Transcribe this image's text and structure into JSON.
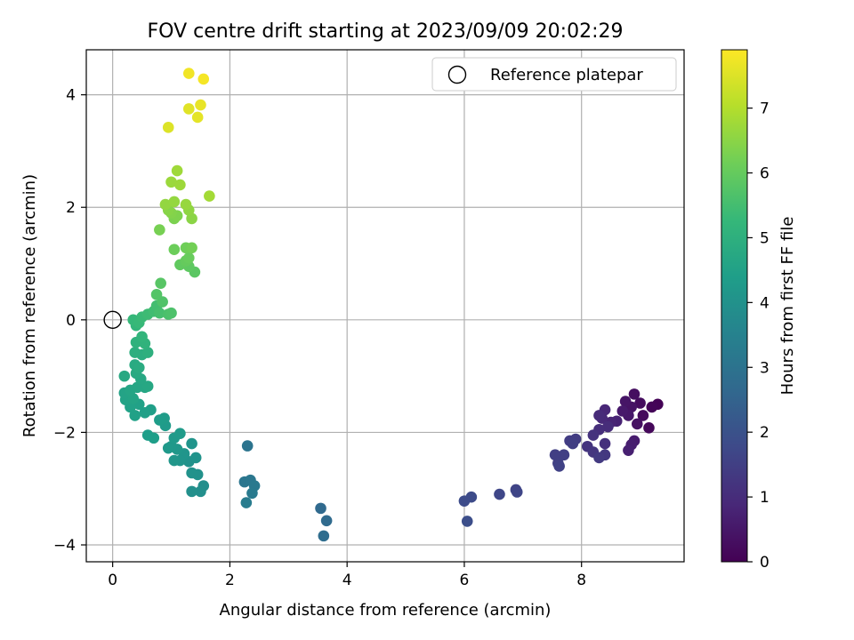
{
  "chart_data": {
    "type": "scatter",
    "title": "FOV centre drift starting at 2023/09/09 20:02:29",
    "xlabel": "Angular distance from reference (arcmin)",
    "ylabel": "Rotation from reference (arcmin)",
    "xlim": [
      -0.45,
      9.75
    ],
    "ylim": [
      -4.3,
      4.8
    ],
    "xticks": [
      0,
      2,
      4,
      6,
      8
    ],
    "yticks": [
      -4,
      -2,
      0,
      2,
      4
    ],
    "grid": true,
    "legend": {
      "position": "top-right",
      "entries": [
        "Reference platepar"
      ]
    },
    "reference_point": {
      "x": 0,
      "y": 0
    },
    "colorbar": {
      "label": "Hours from first FF file",
      "range": [
        0,
        7.9
      ],
      "ticks": [
        0,
        1,
        2,
        3,
        4,
        5,
        6,
        7
      ],
      "colormap": "viridis",
      "stops": [
        "#440154",
        "#482878",
        "#3e4989",
        "#31688e",
        "#26828e",
        "#1f9e89",
        "#35b779",
        "#6ece58",
        "#b5de2b",
        "#fde725"
      ]
    },
    "points": [
      {
        "x": 9.3,
        "y": -1.5,
        "h": 0.05
      },
      {
        "x": 9.2,
        "y": -1.55,
        "h": 0.1
      },
      {
        "x": 9.15,
        "y": -1.92,
        "h": 0.15
      },
      {
        "x": 9.05,
        "y": -1.7,
        "h": 0.2
      },
      {
        "x": 9.0,
        "y": -1.48,
        "h": 0.25
      },
      {
        "x": 8.9,
        "y": -1.32,
        "h": 0.3
      },
      {
        "x": 8.95,
        "y": -1.85,
        "h": 0.35
      },
      {
        "x": 8.85,
        "y": -1.55,
        "h": 0.4
      },
      {
        "x": 8.75,
        "y": -1.45,
        "h": 0.45
      },
      {
        "x": 8.8,
        "y": -1.7,
        "h": 0.5
      },
      {
        "x": 8.7,
        "y": -1.62,
        "h": 0.55
      },
      {
        "x": 8.9,
        "y": -2.15,
        "h": 0.6
      },
      {
        "x": 8.85,
        "y": -2.22,
        "h": 0.65
      },
      {
        "x": 8.8,
        "y": -2.32,
        "h": 0.7
      },
      {
        "x": 8.6,
        "y": -1.8,
        "h": 0.75
      },
      {
        "x": 8.5,
        "y": -1.82,
        "h": 0.8
      },
      {
        "x": 8.4,
        "y": -1.6,
        "h": 0.85
      },
      {
        "x": 8.35,
        "y": -1.75,
        "h": 0.9
      },
      {
        "x": 8.3,
        "y": -1.7,
        "h": 0.95
      },
      {
        "x": 8.45,
        "y": -1.9,
        "h": 1.0
      },
      {
        "x": 8.3,
        "y": -1.95,
        "h": 1.05
      },
      {
        "x": 8.4,
        "y": -2.2,
        "h": 1.1
      },
      {
        "x": 8.2,
        "y": -2.05,
        "h": 1.15
      },
      {
        "x": 8.1,
        "y": -2.25,
        "h": 1.2
      },
      {
        "x": 8.2,
        "y": -2.35,
        "h": 1.25
      },
      {
        "x": 8.4,
        "y": -2.4,
        "h": 1.3
      },
      {
        "x": 8.3,
        "y": -2.45,
        "h": 1.35
      },
      {
        "x": 7.9,
        "y": -2.12,
        "h": 1.4
      },
      {
        "x": 7.8,
        "y": -2.15,
        "h": 1.42
      },
      {
        "x": 7.85,
        "y": -2.2,
        "h": 1.45
      },
      {
        "x": 7.7,
        "y": -2.4,
        "h": 1.48
      },
      {
        "x": 7.55,
        "y": -2.4,
        "h": 1.5
      },
      {
        "x": 7.6,
        "y": -2.55,
        "h": 1.52
      },
      {
        "x": 7.62,
        "y": -2.6,
        "h": 1.55
      },
      {
        "x": 6.88,
        "y": -3.02,
        "h": 1.62
      },
      {
        "x": 6.9,
        "y": -3.06,
        "h": 1.65
      },
      {
        "x": 6.6,
        "y": -3.1,
        "h": 1.7
      },
      {
        "x": 6.12,
        "y": -3.15,
        "h": 1.8
      },
      {
        "x": 6.0,
        "y": -3.22,
        "h": 1.85
      },
      {
        "x": 6.05,
        "y": -3.58,
        "h": 1.9
      },
      {
        "x": 3.55,
        "y": -3.35,
        "h": 2.7
      },
      {
        "x": 3.65,
        "y": -3.57,
        "h": 2.75
      },
      {
        "x": 3.6,
        "y": -3.84,
        "h": 2.8
      },
      {
        "x": 2.3,
        "y": -2.24,
        "h": 3.05
      },
      {
        "x": 2.25,
        "y": -2.88,
        "h": 3.1
      },
      {
        "x": 2.35,
        "y": -2.85,
        "h": 3.15
      },
      {
        "x": 2.42,
        "y": -2.95,
        "h": 3.2
      },
      {
        "x": 2.38,
        "y": -3.08,
        "h": 3.25
      },
      {
        "x": 2.28,
        "y": -3.25,
        "h": 3.3
      },
      {
        "x": 1.55,
        "y": -2.95,
        "h": 3.9
      },
      {
        "x": 1.5,
        "y": -3.05,
        "h": 3.92
      },
      {
        "x": 1.35,
        "y": -3.05,
        "h": 3.95
      },
      {
        "x": 1.45,
        "y": -2.75,
        "h": 3.98
      },
      {
        "x": 1.35,
        "y": -2.72,
        "h": 4.0
      },
      {
        "x": 1.3,
        "y": -2.52,
        "h": 4.02
      },
      {
        "x": 1.42,
        "y": -2.45,
        "h": 4.05
      },
      {
        "x": 1.35,
        "y": -2.2,
        "h": 4.08
      },
      {
        "x": 1.22,
        "y": -2.38,
        "h": 4.1
      },
      {
        "x": 1.15,
        "y": -2.5,
        "h": 4.12
      },
      {
        "x": 1.05,
        "y": -2.5,
        "h": 4.15
      },
      {
        "x": 1.1,
        "y": -2.3,
        "h": 4.18
      },
      {
        "x": 1.0,
        "y": -2.25,
        "h": 4.2
      },
      {
        "x": 0.95,
        "y": -2.28,
        "h": 4.22
      },
      {
        "x": 1.05,
        "y": -2.1,
        "h": 4.25
      },
      {
        "x": 1.15,
        "y": -2.02,
        "h": 4.28
      },
      {
        "x": 0.9,
        "y": -1.88,
        "h": 4.3
      },
      {
        "x": 0.88,
        "y": -1.75,
        "h": 4.32
      },
      {
        "x": 0.8,
        "y": -1.78,
        "h": 4.35
      },
      {
        "x": 0.7,
        "y": -2.1,
        "h": 4.38
      },
      {
        "x": 0.6,
        "y": -2.05,
        "h": 4.4
      },
      {
        "x": 0.65,
        "y": -1.6,
        "h": 4.42
      },
      {
        "x": 0.55,
        "y": -1.65,
        "h": 4.45
      },
      {
        "x": 0.38,
        "y": -1.7,
        "h": 4.48
      },
      {
        "x": 0.45,
        "y": -1.5,
        "h": 4.5
      },
      {
        "x": 0.3,
        "y": -1.55,
        "h": 4.52
      },
      {
        "x": 0.22,
        "y": -1.42,
        "h": 4.55
      },
      {
        "x": 0.2,
        "y": -1.3,
        "h": 4.58
      },
      {
        "x": 0.35,
        "y": -1.4,
        "h": 4.6
      },
      {
        "x": 0.3,
        "y": -1.25,
        "h": 4.62
      },
      {
        "x": 0.42,
        "y": -1.2,
        "h": 4.65
      },
      {
        "x": 0.55,
        "y": -1.2,
        "h": 4.68
      },
      {
        "x": 0.6,
        "y": -1.18,
        "h": 4.7
      },
      {
        "x": 0.48,
        "y": -1.05,
        "h": 4.72
      },
      {
        "x": 0.2,
        "y": -1.0,
        "h": 4.75
      },
      {
        "x": 0.4,
        "y": -0.95,
        "h": 4.78
      },
      {
        "x": 0.38,
        "y": -0.8,
        "h": 4.8
      },
      {
        "x": 0.45,
        "y": -0.85,
        "h": 4.85
      },
      {
        "x": 0.5,
        "y": -0.62,
        "h": 4.9
      },
      {
        "x": 0.38,
        "y": -0.58,
        "h": 4.95
      },
      {
        "x": 0.6,
        "y": -0.58,
        "h": 5.0
      },
      {
        "x": 0.4,
        "y": -0.4,
        "h": 5.05
      },
      {
        "x": 0.55,
        "y": -0.42,
        "h": 5.1
      },
      {
        "x": 0.5,
        "y": -0.3,
        "h": 5.15
      },
      {
        "x": 0.4,
        "y": -0.1,
        "h": 5.2
      },
      {
        "x": 0.35,
        "y": 0.0,
        "h": 5.25
      },
      {
        "x": 0.45,
        "y": -0.05,
        "h": 5.3
      },
      {
        "x": 0.5,
        "y": 0.05,
        "h": 5.35
      },
      {
        "x": 0.6,
        "y": 0.1,
        "h": 5.4
      },
      {
        "x": 0.7,
        "y": 0.15,
        "h": 5.45
      },
      {
        "x": 0.75,
        "y": 0.25,
        "h": 5.5
      },
      {
        "x": 0.8,
        "y": 0.12,
        "h": 5.55
      },
      {
        "x": 0.95,
        "y": 0.1,
        "h": 5.6
      },
      {
        "x": 1.0,
        "y": 0.12,
        "h": 5.65
      },
      {
        "x": 0.85,
        "y": 0.32,
        "h": 5.7
      },
      {
        "x": 0.75,
        "y": 0.45,
        "h": 5.75
      },
      {
        "x": 0.82,
        "y": 0.65,
        "h": 5.8
      },
      {
        "x": 1.4,
        "y": 0.85,
        "h": 5.85
      },
      {
        "x": 1.3,
        "y": 0.95,
        "h": 5.9
      },
      {
        "x": 1.15,
        "y": 0.98,
        "h": 5.95
      },
      {
        "x": 1.25,
        "y": 1.05,
        "h": 6.0
      },
      {
        "x": 1.3,
        "y": 1.1,
        "h": 6.05
      },
      {
        "x": 1.05,
        "y": 1.25,
        "h": 6.1
      },
      {
        "x": 1.25,
        "y": 1.28,
        "h": 6.15
      },
      {
        "x": 1.35,
        "y": 1.28,
        "h": 6.2
      },
      {
        "x": 0.8,
        "y": 1.6,
        "h": 6.25
      },
      {
        "x": 1.05,
        "y": 1.8,
        "h": 6.3
      },
      {
        "x": 1.1,
        "y": 1.85,
        "h": 6.35
      },
      {
        "x": 1.0,
        "y": 1.9,
        "h": 6.4
      },
      {
        "x": 0.95,
        "y": 1.95,
        "h": 6.45
      },
      {
        "x": 1.35,
        "y": 1.8,
        "h": 6.5
      },
      {
        "x": 1.3,
        "y": 1.95,
        "h": 6.55
      },
      {
        "x": 0.9,
        "y": 2.05,
        "h": 6.6
      },
      {
        "x": 1.05,
        "y": 2.1,
        "h": 6.62
      },
      {
        "x": 1.25,
        "y": 2.05,
        "h": 6.65
      },
      {
        "x": 1.0,
        "y": 2.45,
        "h": 6.7
      },
      {
        "x": 1.15,
        "y": 2.4,
        "h": 6.72
      },
      {
        "x": 1.1,
        "y": 2.65,
        "h": 6.75
      },
      {
        "x": 1.65,
        "y": 2.2,
        "h": 6.8
      },
      {
        "x": 0.95,
        "y": 3.42,
        "h": 7.5
      },
      {
        "x": 1.3,
        "y": 3.75,
        "h": 7.55
      },
      {
        "x": 1.45,
        "y": 3.6,
        "h": 7.6
      },
      {
        "x": 1.5,
        "y": 3.82,
        "h": 7.65
      },
      {
        "x": 1.3,
        "y": 4.38,
        "h": 7.75
      },
      {
        "x": 1.55,
        "y": 4.28,
        "h": 7.8
      }
    ]
  }
}
